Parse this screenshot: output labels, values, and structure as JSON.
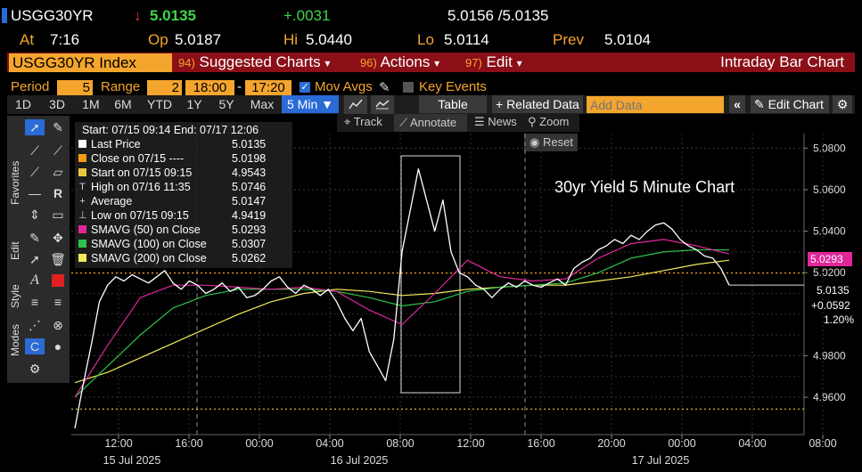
{
  "header": {
    "ticker": "USGG30YR",
    "arrow": "↓",
    "last": "5.0135",
    "change": "+.0031",
    "bid_ask": "5.0156 /5.0135",
    "at_label": "At",
    "at_time": "7:16",
    "open_label": "Op",
    "open_value": "5.0187",
    "high_label": "Hi",
    "high_value": "5.0440",
    "low_label": "Lo",
    "low_value": "5.0114",
    "prev_label": "Prev",
    "prev_value": "5.0104"
  },
  "menubar": {
    "security": "USGG30YR Index",
    "items": [
      {
        "num": "94)",
        "label": "Suggested Charts",
        "caret": "▾"
      },
      {
        "num": "96)",
        "label": "Actions",
        "caret": "▾"
      },
      {
        "num": "97)",
        "label": "Edit",
        "caret": "▾"
      }
    ],
    "title": "Intraday Bar Chart"
  },
  "settings": {
    "period_label": "Period",
    "period_value": "5",
    "range_label": "Range",
    "range_value": "2",
    "start_time": "18:00",
    "dash": "-",
    "end_time": "17:20",
    "mov_avgs": "Mov Avgs",
    "key_events": "Key Events"
  },
  "timeframes": [
    "1D",
    "3D",
    "1M",
    "6M",
    "YTD",
    "1Y",
    "5Y",
    "Max"
  ],
  "interval": "5 Min ▼",
  "toolbar": {
    "table": "Table",
    "related": "+ Related Data",
    "add_data_placeholder": "Add Data",
    "collapse": "«",
    "edit_chart": "Edit Chart"
  },
  "subtools": {
    "track": "Track",
    "annotate": "Annotate",
    "news": "News",
    "zoom": "Zoom",
    "reset": "Reset"
  },
  "sidebar_tabs": [
    "Favorites",
    "Edit",
    "Style",
    "Modes"
  ],
  "legend": {
    "range": "Start: 07/15 09:14 End: 07/17 12:06",
    "rows": [
      {
        "label": "Last Price",
        "value": "5.0135",
        "color": "#ffffff",
        "marker": "box"
      },
      {
        "label": "Close on 07/15 ----",
        "value": "5.0198",
        "color": "#f39c12",
        "marker": "box"
      },
      {
        "label": "Start on 07/15 09:15",
        "value": "4.9543",
        "color": "#e8c83a",
        "marker": "box"
      },
      {
        "label": "High on 07/16 11:35",
        "value": "5.0746",
        "color": "#cccccc",
        "marker": "T"
      },
      {
        "label": "Average",
        "value": "5.0147",
        "color": "#cccccc",
        "marker": "+"
      },
      {
        "label": "Low on 07/15 09:15",
        "value": "4.9419",
        "color": "#cccccc",
        "marker": "⊥"
      },
      {
        "label": "SMAVG (50)  on Close",
        "value": "5.0293",
        "color": "#e0279a",
        "marker": "box"
      },
      {
        "label": "SMAVG (100)  on Close",
        "value": "5.0307",
        "color": "#2ec24a",
        "marker": "box"
      },
      {
        "label": "SMAVG (200)  on Close",
        "value": "5.0262",
        "color": "#f2ea5a",
        "marker": "box"
      }
    ]
  },
  "chart_data": {
    "type": "line",
    "annotation": "30yr Yield 5 Minute Chart",
    "ylim": [
      4.942,
      5.087
    ],
    "yticks": [
      "5.0800",
      "5.0600",
      "5.0400",
      "5.0200",
      "4.9800",
      "4.9600"
    ],
    "xticks": [
      "12:00",
      "16:00",
      "00:00",
      "04:00",
      "08:00",
      "12:00",
      "16:00",
      "20:00",
      "00:00",
      "04:00",
      "08:00"
    ],
    "date_labels": [
      "15 Jul 2025",
      "16 Jul 2025",
      "17 Jul 2025"
    ],
    "right_tags": {
      "sma50": "5.0293",
      "last": "5.0135",
      "change": "+0.0592",
      "pct": "1.20%"
    },
    "reference_lines": {
      "prev_close": 5.0198,
      "start": 4.9543
    },
    "series": [
      {
        "name": "Last Price",
        "color": "#ffffff",
        "x": [
          0,
          1,
          2,
          3,
          4,
          5,
          6,
          7,
          8,
          9,
          10,
          11,
          12,
          13,
          14,
          15,
          16,
          17,
          18,
          19,
          20,
          21,
          22,
          23,
          24,
          25,
          26,
          27,
          28,
          29,
          30,
          31,
          32,
          33,
          34,
          35,
          36,
          37,
          38,
          39,
          40,
          41,
          42,
          43,
          44,
          45,
          46,
          47,
          48,
          49,
          50,
          51,
          52,
          53,
          54,
          55,
          56,
          57,
          58,
          59,
          60,
          61,
          62,
          63,
          64,
          65,
          66,
          67,
          68,
          69,
          70,
          71,
          72,
          73,
          74,
          75,
          76,
          77,
          78,
          79,
          80
        ],
        "y": [
          4.945,
          4.966,
          4.985,
          5.006,
          5.014,
          5.018,
          5.016,
          5.019,
          5.017,
          5.015,
          5.018,
          5.021,
          5.015,
          5.012,
          5.016,
          5.014,
          5.01,
          5.012,
          5.015,
          5.011,
          5.013,
          5.008,
          5.009,
          5.012,
          5.016,
          5.018,
          5.013,
          5.01,
          5.014,
          5.012,
          5.009,
          5.012,
          5.006,
          4.998,
          4.992,
          4.998,
          4.982,
          4.975,
          4.968,
          4.988,
          5.03,
          5.05,
          5.07,
          5.055,
          5.04,
          5.055,
          5.03,
          5.02,
          5.018,
          5.014,
          5.012,
          5.008,
          5.012,
          5.015,
          5.013,
          5.016,
          5.014,
          5.013,
          5.015,
          5.017,
          5.014,
          5.022,
          5.025,
          5.027,
          5.031,
          5.033,
          5.036,
          5.034,
          5.038,
          5.036,
          5.04,
          5.043,
          5.044,
          5.041,
          5.036,
          5.033,
          5.031,
          5.028,
          5.027,
          5.022,
          5.014
        ]
      },
      {
        "name": "SMAVG (50)",
        "color": "#e0279a",
        "x": [
          0,
          4,
          8,
          12,
          16,
          20,
          24,
          28,
          32,
          36,
          40,
          44,
          48,
          52,
          56,
          60,
          64,
          68,
          72,
          76,
          80
        ],
        "y": [
          4.96,
          4.985,
          5.008,
          5.014,
          5.014,
          5.013,
          5.012,
          5.013,
          5.011,
          5.002,
          4.995,
          5.01,
          5.026,
          5.018,
          5.016,
          5.017,
          5.027,
          5.034,
          5.036,
          5.033,
          5.029
        ]
      },
      {
        "name": "SMAVG (100)",
        "color": "#2ec24a",
        "x": [
          0,
          4,
          8,
          12,
          16,
          20,
          24,
          28,
          32,
          36,
          40,
          44,
          48,
          52,
          56,
          60,
          64,
          68,
          72,
          76,
          80
        ],
        "y": [
          4.96,
          4.975,
          4.99,
          5.003,
          5.009,
          5.012,
          5.012,
          5.012,
          5.011,
          5.008,
          5.004,
          5.006,
          5.011,
          5.013,
          5.014,
          5.015,
          5.02,
          5.027,
          5.03,
          5.031,
          5.031
        ]
      },
      {
        "name": "SMAVG (200)",
        "color": "#f2ea5a",
        "x": [
          0,
          4,
          8,
          12,
          16,
          20,
          24,
          28,
          32,
          36,
          40,
          44,
          48,
          52,
          56,
          60,
          64,
          68,
          72,
          76,
          80
        ],
        "y": [
          4.967,
          4.972,
          4.979,
          4.986,
          4.993,
          5.0,
          5.006,
          5.01,
          5.012,
          5.011,
          5.009,
          5.01,
          5.012,
          5.013,
          5.014,
          5.014,
          5.016,
          5.018,
          5.021,
          5.024,
          5.026
        ]
      }
    ]
  }
}
